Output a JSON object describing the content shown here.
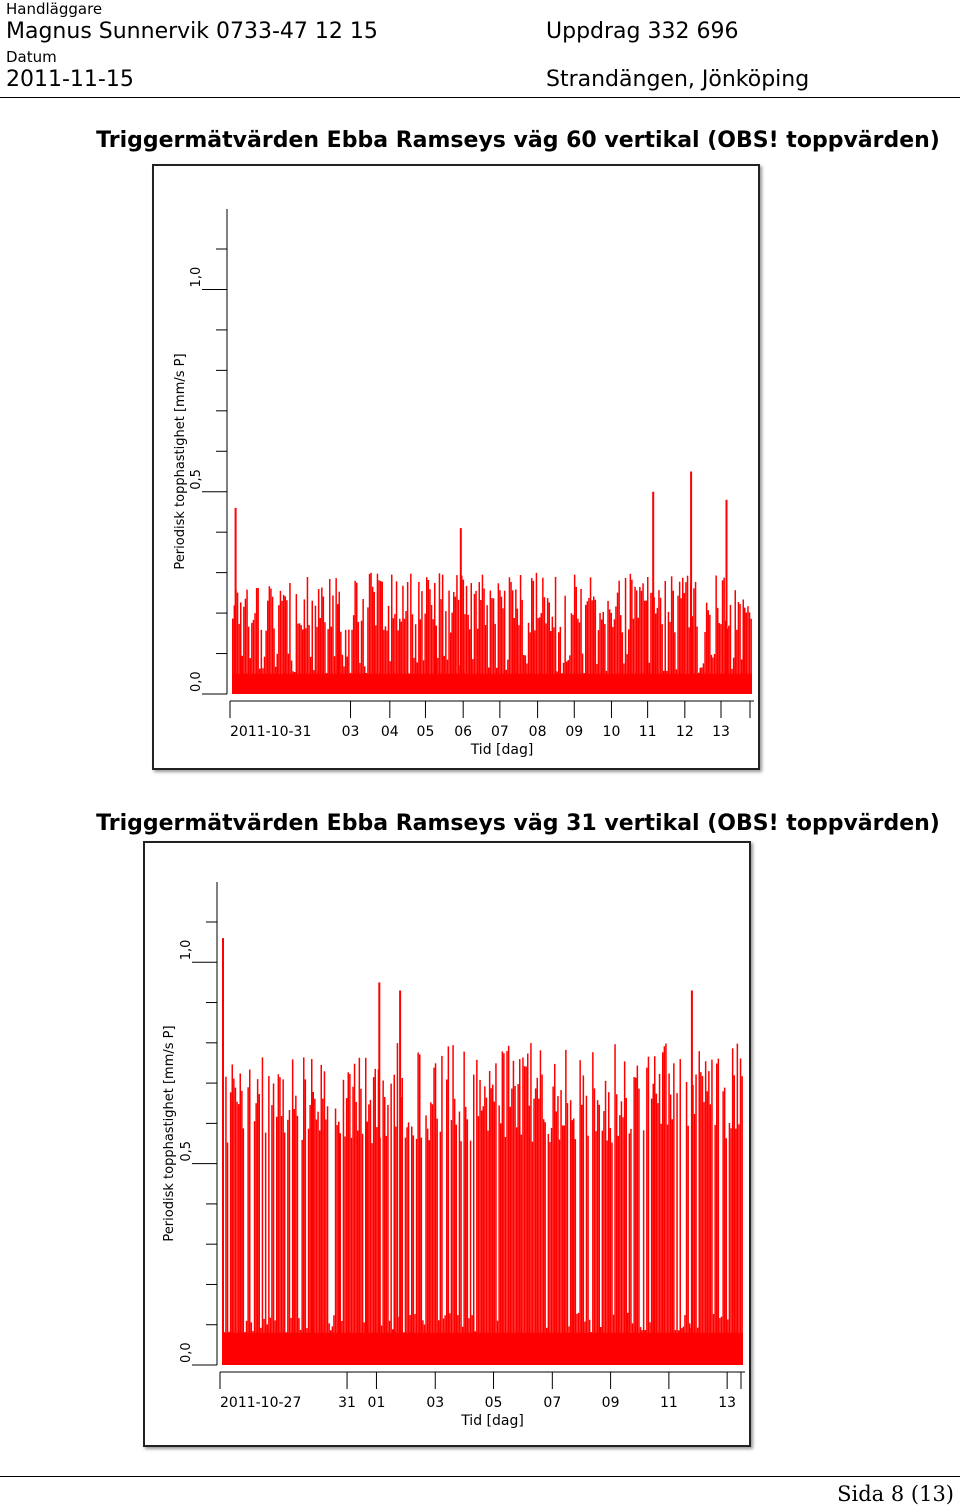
{
  "header": {
    "handlaggare_label": "Handläggare",
    "handlaggare_value": "Magnus Sunnervik 0733-47 12 15",
    "uppdrag": "Uppdrag 332 696",
    "datum_label": "Datum",
    "datum_value": "2011-11-15",
    "location": "Strandängen, Jönköping"
  },
  "charts": [
    {
      "title": "Triggermätvärden Ebba Ramseys väg 60 vertikal (OBS! toppvärden)"
    },
    {
      "title": "Triggermätvärden Ebba Ramseys väg 31 vertikal (OBS! toppvärden)"
    }
  ],
  "chart_data": [
    {
      "type": "bar",
      "title": "Triggermätvärden Ebba Ramseys väg 60 vertikal (OBS! toppvärden)",
      "xlabel": "Tid [dag]",
      "ylabel": "Periodisk topphastighet [mm/s P]",
      "x_tick_labels": [
        "2011-10-31",
        "03",
        "04",
        "05",
        "06",
        "07",
        "08",
        "09",
        "10",
        "11",
        "12",
        "13"
      ],
      "y_tick_labels": [
        "0,0",
        "0,5",
        "1,0"
      ],
      "ylim": [
        0,
        1.1
      ],
      "bar_color": "#ff0000",
      "baseline": 0.05,
      "typical_range": [
        0.15,
        0.3
      ],
      "peaks": [
        {
          "x": 0.005,
          "value": 0.46
        },
        {
          "x": 0.438,
          "value": 0.41
        },
        {
          "x": 0.808,
          "value": 0.5
        },
        {
          "x": 0.881,
          "value": 0.55
        },
        {
          "x": 0.949,
          "value": 0.48
        }
      ]
    },
    {
      "type": "bar",
      "title": "Triggermätvärden Ebba Ramseys väg 31 vertikal (OBS! toppvärden)",
      "xlabel": "Tid [dag]",
      "ylabel": "Periodisk topphastighet [mm/s P]",
      "x_tick_labels": [
        "2011-10-27",
        "31",
        "01",
        "03",
        "05",
        "07",
        "09",
        "11",
        "13"
      ],
      "y_tick_labels": [
        "0,0",
        "0,5",
        "1,0"
      ],
      "ylim": [
        0,
        1.1
      ],
      "bar_color": "#ff0000",
      "baseline": 0.08,
      "typical_range": [
        0.55,
        0.8
      ],
      "peaks": [
        {
          "x": 0.0,
          "value": 1.06
        },
        {
          "x": 0.3,
          "value": 0.95
        },
        {
          "x": 0.34,
          "value": 0.93
        },
        {
          "x": 0.9,
          "value": 0.93
        }
      ]
    }
  ]
}
